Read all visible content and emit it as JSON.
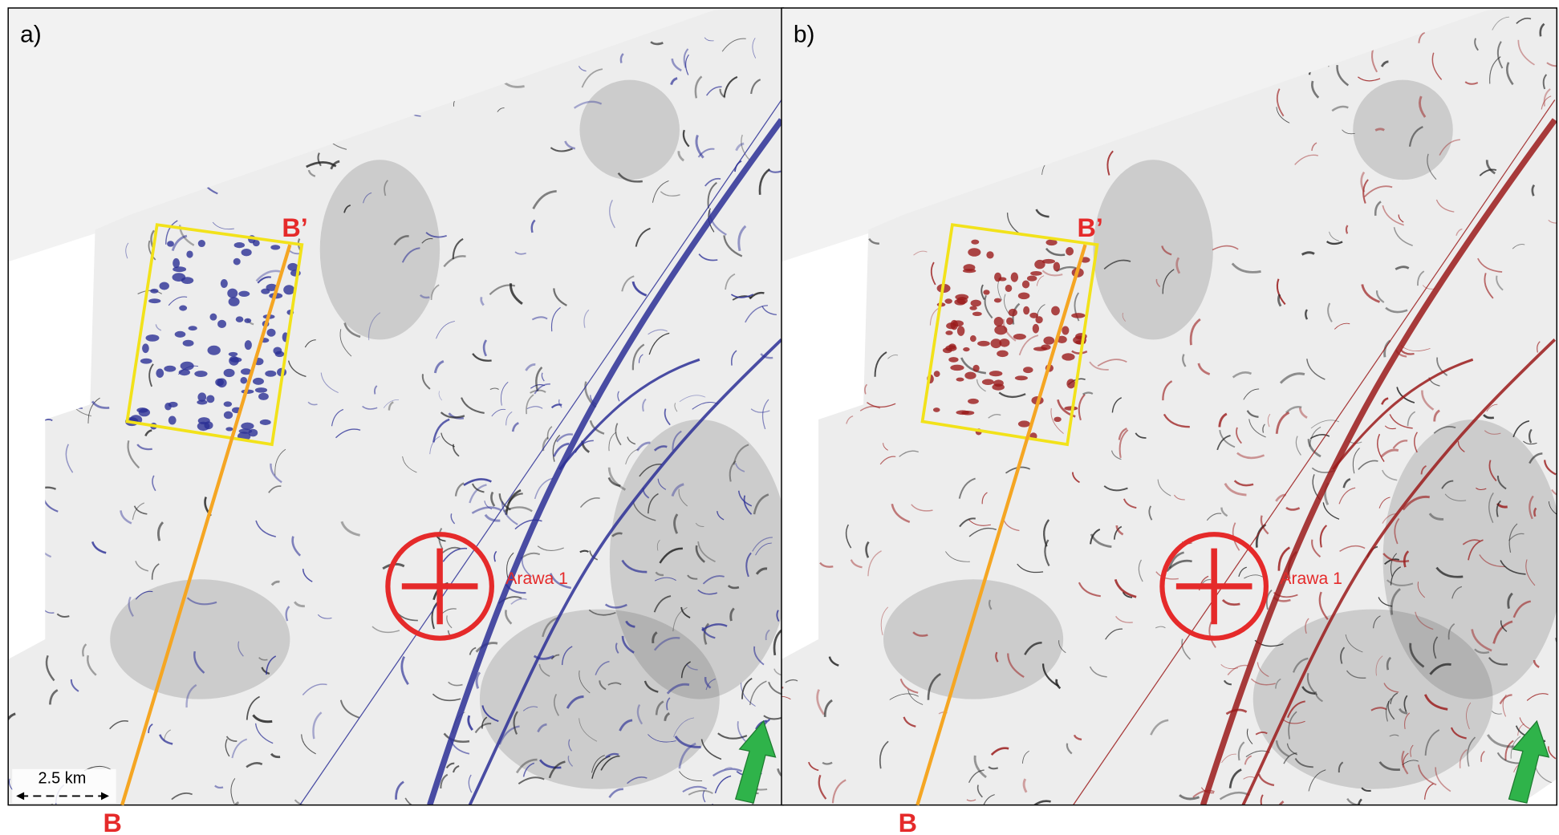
{
  "panels": [
    {
      "label": "a)",
      "section_top": "B’",
      "section_bottom": "B",
      "well": "Arawa 1",
      "scale": "2.5 km"
    },
    {
      "label": "b)",
      "section_top": "B’",
      "section_bottom": "B",
      "well": "Arawa 1"
    }
  ]
}
